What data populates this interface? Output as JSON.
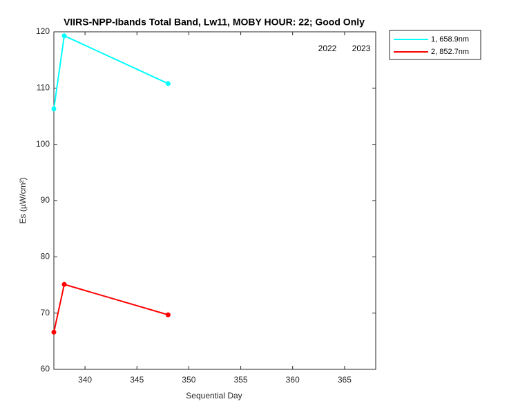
{
  "chart_data": {
    "type": "line",
    "title": "VIIRS-NPP-Ibands Total Band,  Lw11, MOBY HOUR: 22;  Good Only",
    "x_label": "Sequential Day",
    "y_label": "Es (µW/cm²)",
    "annotations": [
      "2022",
      "2023"
    ],
    "x": [
      337,
      338,
      348
    ],
    "series": [
      {
        "name": "1, 658.9nm",
        "color": "#00ffff",
        "values": [
          106.3,
          119.3,
          110.8
        ]
      },
      {
        "name": "2, 852.7nm",
        "color": "#ff0000",
        "values": [
          66.6,
          75.1,
          69.7
        ]
      }
    ],
    "xlim": [
      337,
      368
    ],
    "xticks": [
      340,
      345,
      350,
      355,
      360,
      365
    ],
    "ylim": [
      60,
      120
    ],
    "yticks": [
      60,
      70,
      80,
      90,
      100,
      110,
      120
    ],
    "grid": false,
    "legend": "outside-upper-right"
  }
}
